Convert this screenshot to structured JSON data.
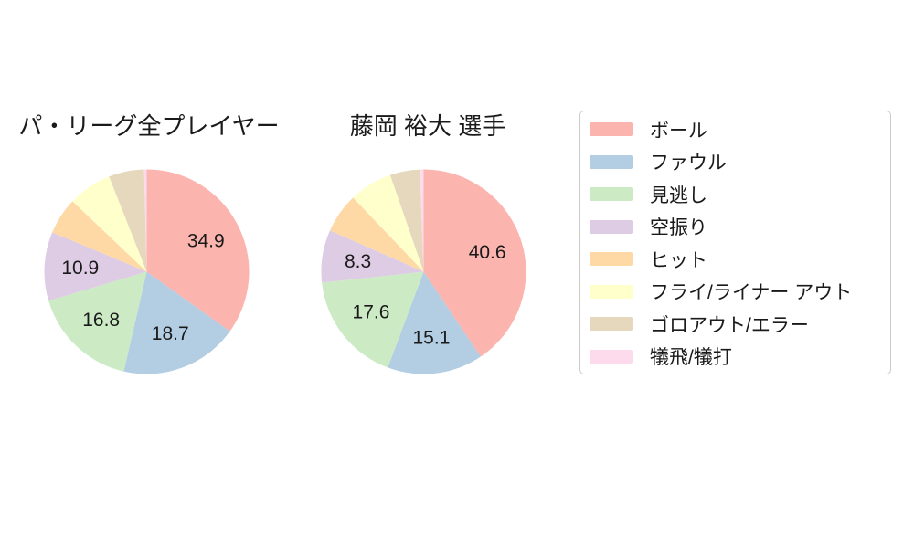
{
  "page": {
    "background": "#ffffff",
    "text_color": "#1a1a1a"
  },
  "chart_data": [
    {
      "type": "pie",
      "title": "パ・リーグ全プレイヤー",
      "start_angle": "top",
      "direction": "clockwise",
      "slices": [
        {
          "category": "ボール",
          "value": 34.9,
          "value_label": "34.9"
        },
        {
          "category": "ファウル",
          "value": 18.7,
          "value_label": "18.7"
        },
        {
          "category": "見逃し",
          "value": 16.8,
          "value_label": "16.8"
        },
        {
          "category": "空振り",
          "value": 10.9,
          "value_label": "10.9"
        },
        {
          "category": "ヒット",
          "value": 5.8,
          "value_label": ""
        },
        {
          "category": "フライ/ライナー アウト",
          "value": 6.9,
          "value_label": ""
        },
        {
          "category": "ゴロアウト/エラー",
          "value": 5.6,
          "value_label": ""
        },
        {
          "category": "犠飛/犠打",
          "value": 0.4,
          "value_label": ""
        }
      ]
    },
    {
      "type": "pie",
      "title": "藤岡 裕大  選手",
      "start_angle": "top",
      "direction": "clockwise",
      "slices": [
        {
          "category": "ボール",
          "value": 40.6,
          "value_label": "40.6"
        },
        {
          "category": "ファウル",
          "value": 15.1,
          "value_label": "15.1"
        },
        {
          "category": "見逃し",
          "value": 17.6,
          "value_label": "17.6"
        },
        {
          "category": "空振り",
          "value": 8.3,
          "value_label": "8.3"
        },
        {
          "category": "ヒット",
          "value": 6.3,
          "value_label": ""
        },
        {
          "category": "フライ/ライナー アウト",
          "value": 6.8,
          "value_label": ""
        },
        {
          "category": "ゴロアウト/エラー",
          "value": 4.7,
          "value_label": ""
        },
        {
          "category": "犠飛/犠打",
          "value": 0.6,
          "value_label": ""
        }
      ]
    }
  ],
  "legend": {
    "border_color": "#cccccc",
    "items": [
      {
        "key": "ball",
        "label": "ボール",
        "color": "#fbb4ae"
      },
      {
        "key": "foul",
        "label": "ファウル",
        "color": "#b3cde3"
      },
      {
        "key": "called-strike",
        "label": "見逃し",
        "color": "#ccebc5"
      },
      {
        "key": "swinging-strike",
        "label": "空振り",
        "color": "#decbe4"
      },
      {
        "key": "hit",
        "label": "ヒット",
        "color": "#fed9a6"
      },
      {
        "key": "fly-liner-out",
        "label": "フライ/ライナー アウト",
        "color": "#ffffcc"
      },
      {
        "key": "ground-out-error",
        "label": "ゴロアウト/エラー",
        "color": "#e5d8bd"
      },
      {
        "key": "sac-fly-sac-bunt",
        "label": "犠飛/犠打",
        "color": "#fddaec"
      }
    ]
  }
}
